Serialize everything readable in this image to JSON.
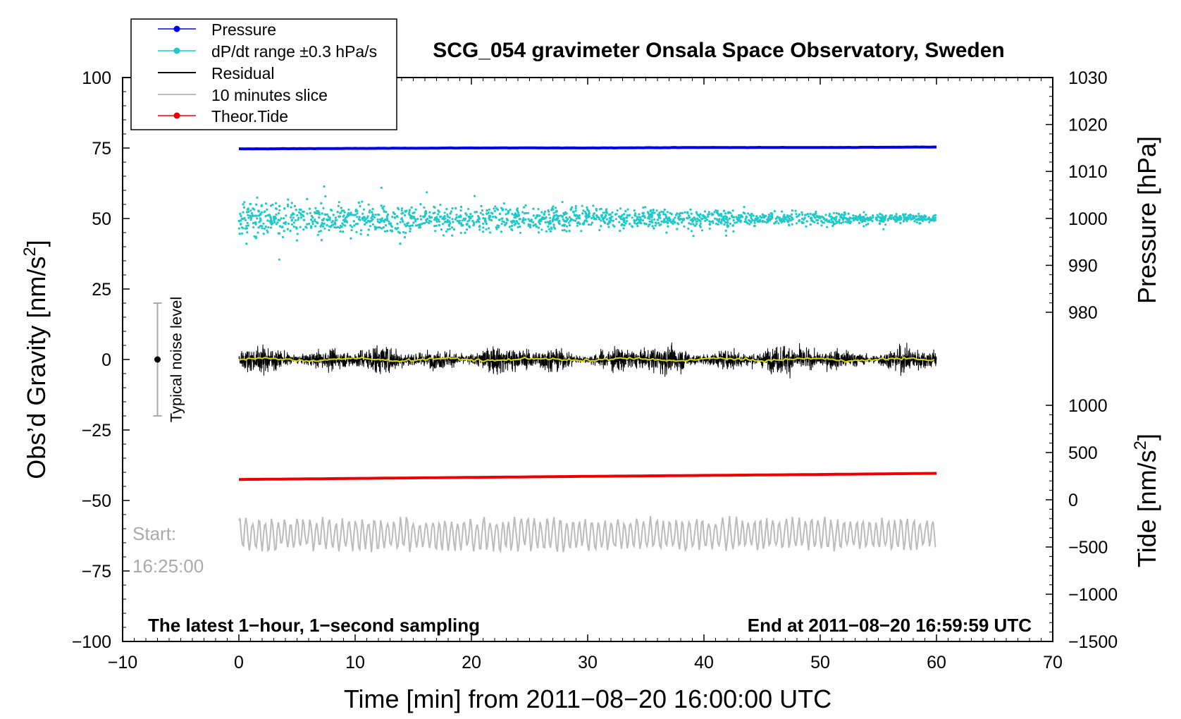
{
  "chart_data": {
    "type": "scatter",
    "title": "SCG_054 gravimeter Onsala Space Observatory, Sweden",
    "xlabel": "Time [min] from 2011−08−20 16:00:00 UTC",
    "ylabel_left": "Obs’d Gravity [nm/s",
    "ylabel_left_sup": "2",
    "ylabel_left_close": "]",
    "ylabel_right_pressure": "Pressure [hPa]",
    "ylabel_right_tide": "Tide [nm/s",
    "ylabel_right_tide_sup": "2",
    "ylabel_right_tide_close": "]",
    "xlim": [
      -10,
      70
    ],
    "ylim": [
      -100,
      100
    ],
    "xticks": [
      "−10",
      "0",
      "10",
      "20",
      "30",
      "40",
      "50",
      "60",
      "70"
    ],
    "yticks_left": [
      "100",
      "75",
      "50",
      "25",
      "0",
      "−25",
      "−50",
      "−75",
      "−100"
    ],
    "yticks_pressure": [
      "1030",
      "1020",
      "1010",
      "1000",
      "990",
      "980"
    ],
    "pressure_range": [
      980,
      1030
    ],
    "yticks_tide": [
      "1000",
      "500",
      "0",
      "−500",
      "−1000",
      "−1500"
    ],
    "tide_range": [
      -1500,
      1000
    ],
    "legend_position": "top-left",
    "legend": [
      {
        "label": "Pressure",
        "color": "#0000ee",
        "marker": true
      },
      {
        "label": "dP/dt range ±0.3 hPa/s",
        "color": "#20c8c8",
        "marker": true
      },
      {
        "label": "Residual",
        "color": "#000000",
        "marker": false
      },
      {
        "label": "10 minutes slice",
        "color": "#bbbbbb",
        "marker": false
      },
      {
        "label": "Theor.Tide",
        "color": "#ee0000",
        "marker": true
      }
    ],
    "series": [
      {
        "name": "Pressure",
        "axis": "pressure",
        "color": "#0000ee",
        "x": [
          0,
          10,
          20,
          30,
          40,
          50,
          60
        ],
        "values": [
          1014.8,
          1014.9,
          1015.0,
          1015.0,
          1015.1,
          1015.1,
          1015.2
        ]
      },
      {
        "name": "dP/dt range ±0.3 hPa/s",
        "color": "#20c8c8",
        "center": 50,
        "spread_start": 8,
        "spread_end": 1.5
      },
      {
        "name": "Residual",
        "color": "#000000",
        "center": 0,
        "amplitude": 5
      },
      {
        "name": "10 minutes slice",
        "color": "#bbbbbb",
        "center": -62,
        "amplitude": 5
      },
      {
        "name": "Theor.Tide",
        "axis": "tide",
        "color": "#ee0000",
        "x": [
          0,
          10,
          20,
          30,
          40,
          50,
          60
        ],
        "values": [
          215,
          226,
          237,
          248,
          258,
          268,
          280
        ]
      }
    ],
    "noise_bar": {
      "label": "Typical noise level",
      "x": -7,
      "center": 0,
      "half_range": 20
    },
    "annotations": {
      "start_label": "Start:",
      "start_time": "16:25:00",
      "bottom_left": "The latest 1−hour, 1−second sampling",
      "bottom_right": "End at 2011−08−20 16:59:59 UTC"
    }
  }
}
